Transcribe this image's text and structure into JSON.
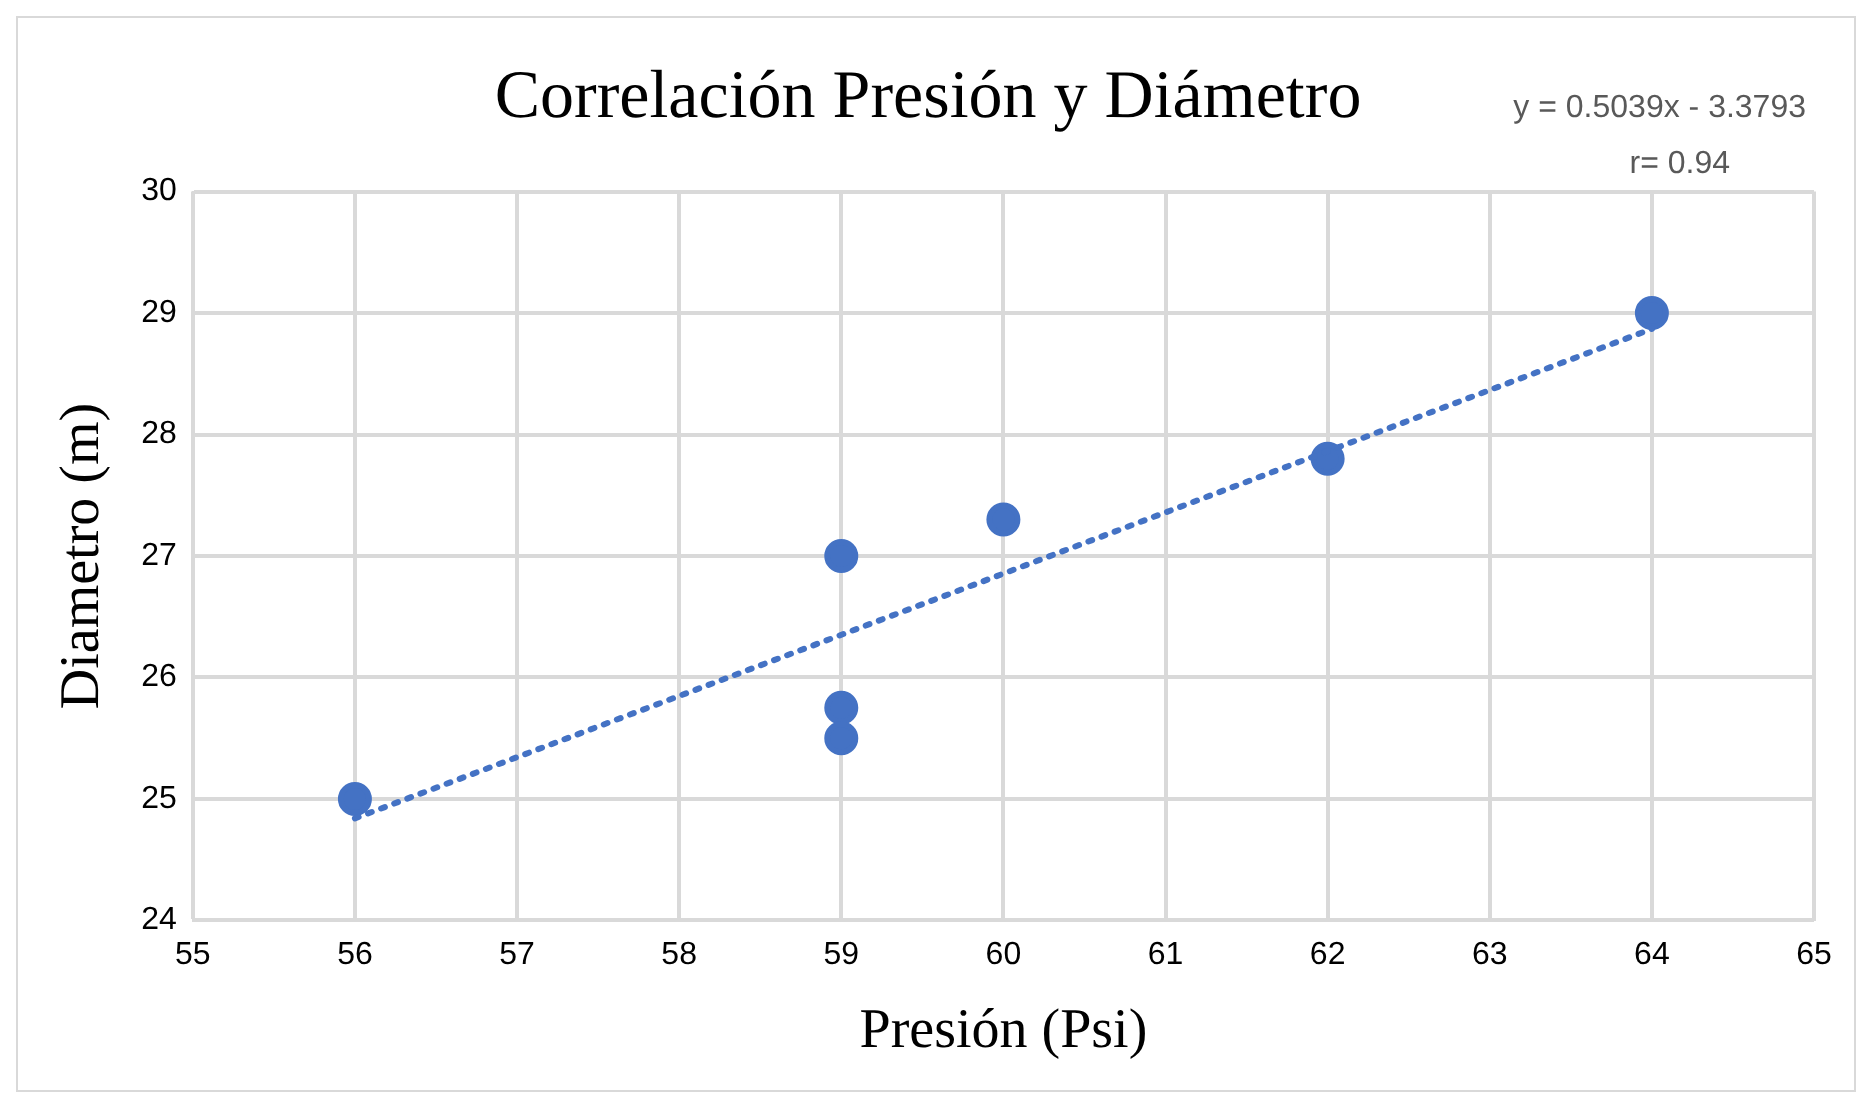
{
  "chart_data": {
    "type": "scatter",
    "title": "Correlación Presión y Diámetro",
    "xlabel": "Presión (Psi)",
    "ylabel": "Diametro (m)",
    "annotations": [
      "y = 0.5039x - 3.3793",
      "r= 0.94"
    ],
    "series": [
      {
        "color": "#4472c4",
        "x": [
          56,
          59,
          59,
          59,
          60,
          62,
          64
        ],
        "values": [
          25,
          27,
          25.75,
          25.5,
          27.3,
          27.8,
          29
        ]
      },
      {
        "type": "line",
        "color": "#4472c4",
        "line_style": "dotted",
        "marker": "none",
        "x": [
          56,
          64
        ],
        "values": [
          24.84,
          28.87
        ]
      }
    ],
    "xlim": [
      55,
      65
    ],
    "xticks": [
      55,
      56,
      57,
      58,
      59,
      60,
      61,
      62,
      63,
      64,
      65
    ],
    "ylim": [
      24,
      30
    ],
    "yticks": [
      24,
      25,
      26,
      27,
      28,
      29,
      30
    ],
    "grid": true,
    "legend": false,
    "marker": "circle"
  }
}
